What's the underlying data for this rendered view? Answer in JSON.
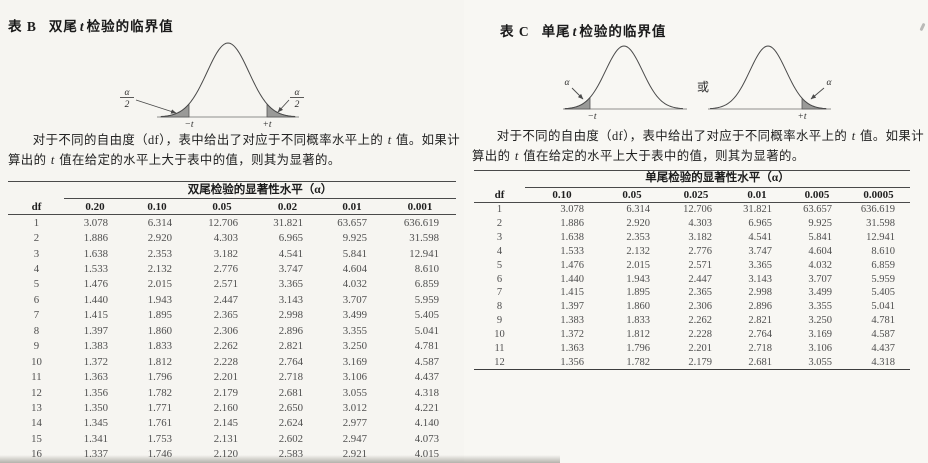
{
  "palette": {
    "page_background": "#f7f6f2",
    "ink": "#1a1a1a",
    "table_ink": "#4f4f4f",
    "rule_color": "#4a4a4a",
    "tail_shade_gray": "#9a9a98"
  },
  "shared": {
    "paragraph": {
      "seg1": "对于不同的自由度（df），表中给出了对应于不同概率水平上的 ",
      "t1": "t",
      "seg2": " 值。如果计算出的 ",
      "t2": "t",
      "seg3": " 值在给定的水平上大于表中的值，则其为显著的。"
    }
  },
  "left_page": {
    "title": {
      "label": "表 B",
      "pre": "双尾",
      "t": "t",
      "post": "检验的临界值"
    },
    "diagram": {
      "alpha_numerator": "α",
      "alpha_denominator": "2",
      "minus_t": "−t",
      "plus_t": "+t"
    },
    "table": {
      "spanner": "双尾检验的显著性水平（α）",
      "df_header": "df",
      "alpha_headers": [
        "0.20",
        "0.10",
        "0.05",
        "0.02",
        "0.01",
        "0.001"
      ],
      "rows": [
        {
          "df": "1",
          "values": [
            "3.078",
            "6.314",
            "12.706",
            "31.821",
            "63.657",
            "636.619"
          ]
        },
        {
          "df": "2",
          "values": [
            "1.886",
            "2.920",
            "4.303",
            "6.965",
            "9.925",
            "31.598"
          ]
        },
        {
          "df": "3",
          "values": [
            "1.638",
            "2.353",
            "3.182",
            "4.541",
            "5.841",
            "12.941"
          ]
        },
        {
          "df": "4",
          "values": [
            "1.533",
            "2.132",
            "2.776",
            "3.747",
            "4.604",
            "8.610"
          ]
        },
        {
          "df": "5",
          "values": [
            "1.476",
            "2.015",
            "2.571",
            "3.365",
            "4.032",
            "6.859"
          ]
        },
        {
          "df": "6",
          "values": [
            "1.440",
            "1.943",
            "2.447",
            "3.143",
            "3.707",
            "5.959"
          ]
        },
        {
          "df": "7",
          "values": [
            "1.415",
            "1.895",
            "2.365",
            "2.998",
            "3.499",
            "5.405"
          ]
        },
        {
          "df": "8",
          "values": [
            "1.397",
            "1.860",
            "2.306",
            "2.896",
            "3.355",
            "5.041"
          ]
        },
        {
          "df": "9",
          "values": [
            "1.383",
            "1.833",
            "2.262",
            "2.821",
            "3.250",
            "4.781"
          ]
        },
        {
          "df": "10",
          "values": [
            "1.372",
            "1.812",
            "2.228",
            "2.764",
            "3.169",
            "4.587"
          ]
        },
        {
          "df": "11",
          "values": [
            "1.363",
            "1.796",
            "2.201",
            "2.718",
            "3.106",
            "4.437"
          ]
        },
        {
          "df": "12",
          "values": [
            "1.356",
            "1.782",
            "2.179",
            "2.681",
            "3.055",
            "4.318"
          ]
        },
        {
          "df": "13",
          "values": [
            "1.350",
            "1.771",
            "2.160",
            "2.650",
            "3.012",
            "4.221"
          ]
        },
        {
          "df": "14",
          "values": [
            "1.345",
            "1.761",
            "2.145",
            "2.624",
            "2.977",
            "4.140"
          ]
        },
        {
          "df": "15",
          "values": [
            "1.341",
            "1.753",
            "2.131",
            "2.602",
            "2.947",
            "4.073"
          ]
        },
        {
          "df": "16",
          "values": [
            "1.337",
            "1.746",
            "2.120",
            "2.583",
            "2.921",
            "4.015"
          ]
        }
      ]
    }
  },
  "right_page": {
    "title": {
      "label": "表 C",
      "pre": "单尾",
      "t": "t",
      "post": "检验的临界值"
    },
    "diagram": {
      "alpha_left": "α",
      "alpha_right": "α",
      "or": "或",
      "minus_t": "−t",
      "plus_t": "+t"
    },
    "table": {
      "spanner": "单尾检验的显著性水平（α）",
      "df_header": "df",
      "alpha_headers": [
        "0.10",
        "0.05",
        "0.025",
        "0.01",
        "0.005",
        "0.0005"
      ],
      "rows": [
        {
          "df": "1",
          "values": [
            "3.078",
            "6.314",
            "12.706",
            "31.821",
            "63.657",
            "636.619"
          ]
        },
        {
          "df": "2",
          "values": [
            "1.886",
            "2.920",
            "4.303",
            "6.965",
            "9.925",
            "31.598"
          ]
        },
        {
          "df": "3",
          "values": [
            "1.638",
            "2.353",
            "3.182",
            "4.541",
            "5.841",
            "12.941"
          ]
        },
        {
          "df": "4",
          "values": [
            "1.533",
            "2.132",
            "2.776",
            "3.747",
            "4.604",
            "8.610"
          ]
        },
        {
          "df": "5",
          "values": [
            "1.476",
            "2.015",
            "2.571",
            "3.365",
            "4.032",
            "6.859"
          ]
        },
        {
          "df": "6",
          "values": [
            "1.440",
            "1.943",
            "2.447",
            "3.143",
            "3.707",
            "5.959"
          ]
        },
        {
          "df": "7",
          "values": [
            "1.415",
            "1.895",
            "2.365",
            "2.998",
            "3.499",
            "5.405"
          ]
        },
        {
          "df": "8",
          "values": [
            "1.397",
            "1.860",
            "2.306",
            "2.896",
            "3.355",
            "5.041"
          ]
        },
        {
          "df": "9",
          "values": [
            "1.383",
            "1.833",
            "2.262",
            "2.821",
            "3.250",
            "4.781"
          ]
        },
        {
          "df": "10",
          "values": [
            "1.372",
            "1.812",
            "2.228",
            "2.764",
            "3.169",
            "4.587"
          ]
        },
        {
          "df": "11",
          "values": [
            "1.363",
            "1.796",
            "2.201",
            "2.718",
            "3.106",
            "4.437"
          ]
        },
        {
          "df": "12",
          "values": [
            "1.356",
            "1.782",
            "2.179",
            "2.681",
            "3.055",
            "4.318"
          ]
        }
      ]
    }
  }
}
